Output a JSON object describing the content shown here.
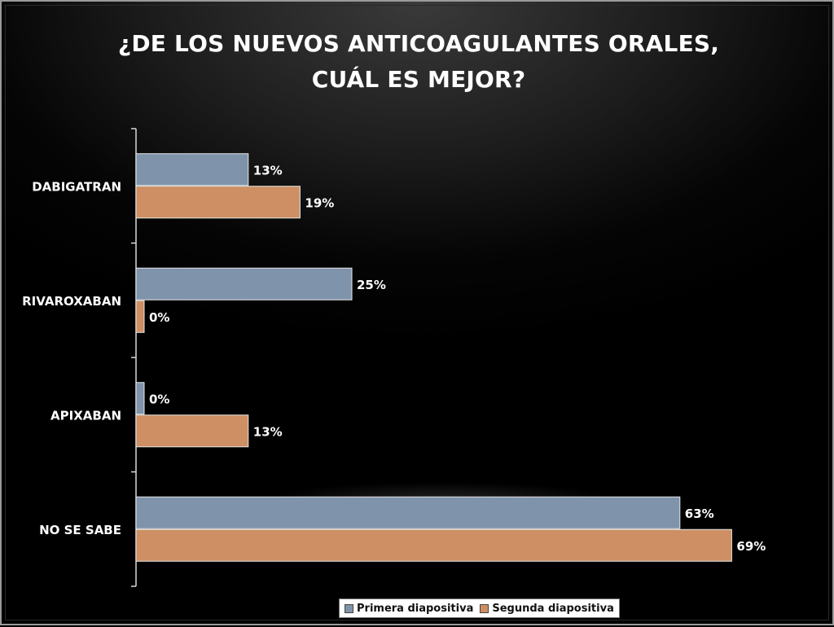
{
  "chart_data": {
    "type": "bar",
    "orientation": "horizontal",
    "title": "¿DE LOS NUEVOS ANTICOAGULANTES ORALES, CUÁL ES MEJOR?",
    "categories": [
      "DABIGATRAN",
      "RIVAROXABAN",
      "APIXABAN",
      "NO SE SABE"
    ],
    "series": [
      {
        "name": "Primera diapositiva",
        "values": [
          13,
          25,
          0,
          63
        ],
        "labels": [
          "13%",
          "25%",
          "0%",
          "63%"
        ],
        "color": "#7f93aa"
      },
      {
        "name": "Segunda diapositiva",
        "values": [
          19,
          0,
          13,
          69
        ],
        "labels": [
          "19%",
          "0%",
          "13%",
          "69%"
        ],
        "color": "#cd8f63"
      }
    ],
    "value_axis_visible": false,
    "legend_position": "bottom",
    "grid": false
  }
}
